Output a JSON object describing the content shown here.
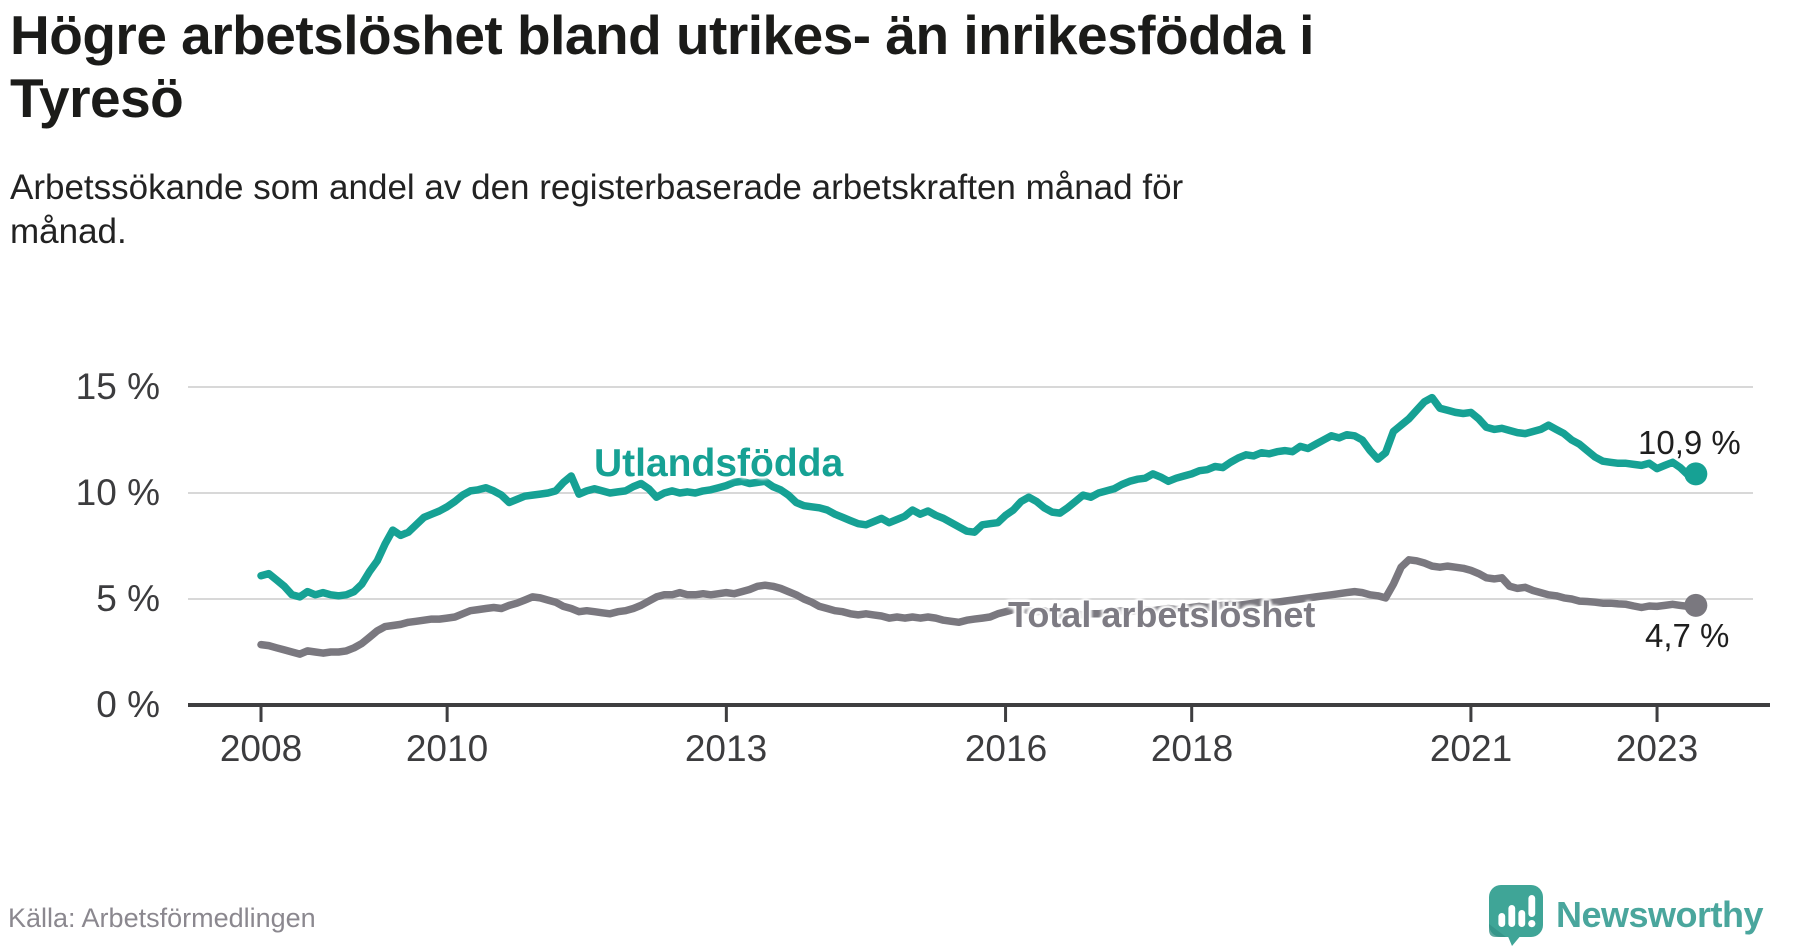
{
  "header": {
    "title_line1": "Högre arbetslöshet bland utrikes- än inrikesfödda i",
    "title_line2": "Tyresö",
    "subtitle_line1": "Arbetssökande som andel av den registerbaserade arbetskraften månad för",
    "subtitle_line2": "månad."
  },
  "footer": {
    "source": "Källa: Arbetsförmedlingen"
  },
  "logo": {
    "text": "Newsworthy",
    "icon": "newsworthy-speech-bubble-bar-chart",
    "icon_color": "#3fa597",
    "text_color": "#4aa69d"
  },
  "chart_data": {
    "type": "line",
    "title": "Högre arbetslöshet bland utrikes- än inrikesfödda i Tyresö",
    "subtitle": "Arbetssökande som andel av den registerbaserade arbetskraften månad för månad.",
    "source": "Källa: Arbetsförmedlingen",
    "unit": "%",
    "frequency": "monthly",
    "start": "2008-01",
    "end": "2023-06",
    "ylim": [
      0,
      15.8
    ],
    "grid": "horizontal",
    "legend_position": "inline-labels",
    "yticks": [
      {
        "label": "15 %",
        "value": 15
      },
      {
        "label": "10 %",
        "value": 10
      },
      {
        "label": "5 %",
        "value": 5
      },
      {
        "label": "0 %",
        "value": 0
      }
    ],
    "xticks": [
      {
        "label": "2008",
        "year": 2008
      },
      {
        "label": "2010",
        "year": 2010
      },
      {
        "label": "2013",
        "year": 2013
      },
      {
        "label": "2016",
        "year": 2016
      },
      {
        "label": "2018",
        "year": 2018
      },
      {
        "label": "2021",
        "year": 2021
      },
      {
        "label": "2023",
        "year": 2023
      }
    ],
    "series": [
      {
        "name": "Utlandsfödda",
        "color": "#16a194",
        "end_label": "10,9 %",
        "end_value": 10.9,
        "values": [
          6.1,
          6.2,
          5.9,
          5.6,
          5.2,
          5.1,
          5.35,
          5.2,
          5.3,
          5.2,
          5.15,
          5.2,
          5.35,
          5.7,
          6.3,
          6.8,
          7.6,
          8.25,
          8.0,
          8.15,
          8.5,
          8.85,
          9.0,
          9.15,
          9.35,
          9.6,
          9.9,
          10.1,
          10.15,
          10.25,
          10.1,
          9.9,
          9.55,
          9.7,
          9.85,
          9.9,
          9.95,
          10.0,
          10.1,
          10.5,
          10.8,
          9.95,
          10.1,
          10.2,
          10.1,
          10.0,
          10.05,
          10.1,
          10.3,
          10.45,
          10.2,
          9.8,
          10.0,
          10.1,
          10.0,
          10.05,
          10.0,
          10.1,
          10.15,
          10.25,
          10.35,
          10.5,
          10.55,
          10.45,
          10.5,
          10.55,
          10.3,
          10.15,
          9.9,
          9.55,
          9.4,
          9.35,
          9.3,
          9.2,
          9.0,
          8.85,
          8.7,
          8.55,
          8.5,
          8.65,
          8.8,
          8.6,
          8.75,
          8.9,
          9.2,
          9.0,
          9.15,
          8.95,
          8.8,
          8.6,
          8.4,
          8.2,
          8.15,
          8.5,
          8.55,
          8.6,
          8.95,
          9.2,
          9.6,
          9.8,
          9.6,
          9.3,
          9.1,
          9.05,
          9.3,
          9.6,
          9.9,
          9.8,
          10.0,
          10.1,
          10.2,
          10.4,
          10.55,
          10.65,
          10.7,
          10.9,
          10.75,
          10.55,
          10.7,
          10.8,
          10.9,
          11.05,
          11.1,
          11.25,
          11.2,
          11.45,
          11.65,
          11.8,
          11.75,
          11.9,
          11.85,
          11.95,
          12.0,
          11.95,
          12.2,
          12.1,
          12.3,
          12.5,
          12.7,
          12.6,
          12.75,
          12.7,
          12.5,
          12.0,
          11.6,
          11.9,
          12.9,
          13.2,
          13.5,
          13.9,
          14.3,
          14.5,
          14.0,
          13.9,
          13.8,
          13.75,
          13.8,
          13.5,
          13.1,
          13.0,
          13.05,
          12.95,
          12.85,
          12.8,
          12.9,
          13.0,
          13.2,
          13.0,
          12.8,
          12.5,
          12.3,
          12.0,
          11.7,
          11.5,
          11.45,
          11.4,
          11.4,
          11.35,
          11.3,
          11.4,
          11.15,
          11.3,
          11.45,
          11.2,
          10.85,
          10.9
        ]
      },
      {
        "name": "Total arbetslöshet",
        "color": "#7a787f",
        "end_label": "4,7 %",
        "end_value": 4.7,
        "values": [
          2.85,
          2.8,
          2.7,
          2.6,
          2.5,
          2.4,
          2.55,
          2.5,
          2.45,
          2.5,
          2.5,
          2.55,
          2.7,
          2.9,
          3.2,
          3.5,
          3.7,
          3.75,
          3.8,
          3.9,
          3.95,
          4.0,
          4.05,
          4.05,
          4.1,
          4.15,
          4.3,
          4.45,
          4.5,
          4.55,
          4.6,
          4.55,
          4.7,
          4.8,
          4.95,
          5.1,
          5.05,
          4.95,
          4.85,
          4.65,
          4.55,
          4.4,
          4.45,
          4.4,
          4.35,
          4.3,
          4.4,
          4.45,
          4.55,
          4.7,
          4.9,
          5.1,
          5.2,
          5.2,
          5.3,
          5.2,
          5.2,
          5.25,
          5.2,
          5.25,
          5.3,
          5.25,
          5.35,
          5.45,
          5.6,
          5.65,
          5.6,
          5.5,
          5.35,
          5.2,
          5.0,
          4.85,
          4.65,
          4.55,
          4.45,
          4.4,
          4.3,
          4.25,
          4.3,
          4.25,
          4.2,
          4.1,
          4.15,
          4.1,
          4.15,
          4.1,
          4.15,
          4.1,
          4.0,
          3.95,
          3.9,
          4.0,
          4.05,
          4.1,
          4.15,
          4.3,
          4.4,
          4.5,
          4.55,
          4.45,
          4.4,
          4.45,
          4.3,
          4.25,
          4.2,
          4.3,
          4.25,
          4.3,
          4.3,
          4.35,
          4.4,
          4.45,
          4.4,
          4.45,
          4.5,
          4.45,
          4.5,
          4.55,
          4.5,
          4.55,
          4.6,
          4.65,
          4.6,
          4.65,
          4.7,
          4.75,
          4.7,
          4.75,
          4.8,
          4.85,
          4.8,
          4.85,
          4.9,
          4.95,
          5.0,
          5.05,
          5.1,
          5.15,
          5.2,
          5.25,
          5.3,
          5.35,
          5.3,
          5.2,
          5.15,
          5.05,
          5.7,
          6.5,
          6.85,
          6.8,
          6.7,
          6.55,
          6.5,
          6.55,
          6.5,
          6.45,
          6.35,
          6.2,
          6.0,
          5.95,
          6.0,
          5.6,
          5.5,
          5.55,
          5.4,
          5.3,
          5.2,
          5.15,
          5.05,
          5.0,
          4.9,
          4.88,
          4.85,
          4.8,
          4.8,
          4.77,
          4.75,
          4.67,
          4.6,
          4.67,
          4.65,
          4.7,
          4.75,
          4.7,
          4.65,
          4.7
        ]
      }
    ]
  }
}
